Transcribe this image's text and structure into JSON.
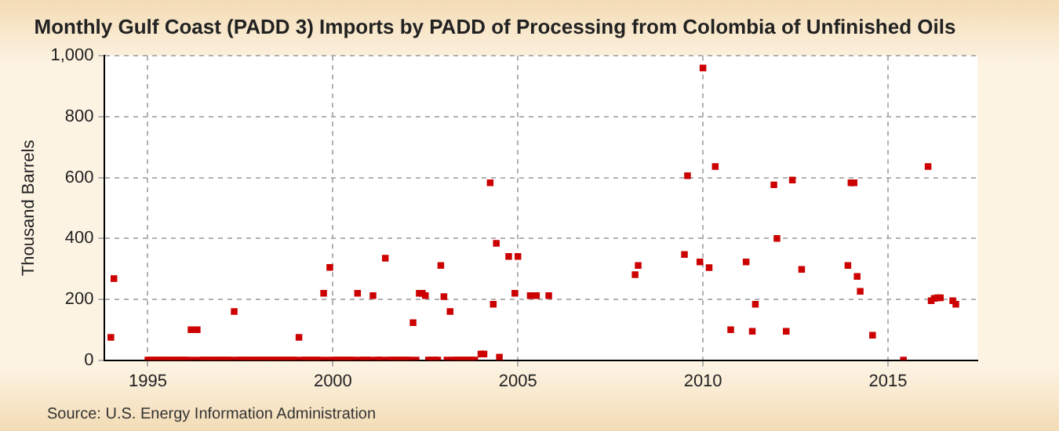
{
  "chart_data": {
    "type": "scatter",
    "title": "Monthly Gulf Coast (PADD 3) Imports by PADD of Processing from Colombia of Unfinished Oils",
    "ylabel": "Thousand Barrels",
    "annotations": [
      "Source: U.S. Energy Information Administration"
    ],
    "x": [
      "1994-01",
      "1994-02",
      "1995-01",
      "1995-02",
      "1995-03",
      "1995-04",
      "1995-05",
      "1995-06",
      "1995-07",
      "1995-08",
      "1995-09",
      "1995-10",
      "1995-11",
      "1995-12",
      "1996-01",
      "1996-02",
      "1996-03",
      "1996-04",
      "1996-05",
      "1996-06",
      "1996-07",
      "1996-08",
      "1996-09",
      "1996-10",
      "1996-11",
      "1996-12",
      "1997-01",
      "1997-02",
      "1997-03",
      "1997-04",
      "1997-05",
      "1997-06",
      "1997-07",
      "1997-08",
      "1997-09",
      "1997-10",
      "1997-11",
      "1997-12",
      "1998-01",
      "1998-02",
      "1998-03",
      "1998-04",
      "1998-05",
      "1998-06",
      "1998-07",
      "1998-08",
      "1998-09",
      "1998-10",
      "1998-11",
      "1998-12",
      "1999-01",
      "1999-02",
      "1999-03",
      "1999-04",
      "1999-05",
      "1999-06",
      "1999-07",
      "1999-08",
      "1999-09",
      "1999-10",
      "1999-11",
      "1999-12",
      "2000-01",
      "2000-02",
      "2000-03",
      "2000-04",
      "2000-05",
      "2000-06",
      "2000-07",
      "2000-08",
      "2000-09",
      "2000-10",
      "2000-11",
      "2000-12",
      "2001-01",
      "2001-02",
      "2001-03",
      "2001-04",
      "2001-05",
      "2001-06",
      "2001-07",
      "2001-08",
      "2001-09",
      "2001-10",
      "2001-11",
      "2001-12",
      "2002-01",
      "2002-02",
      "2002-03",
      "2002-04",
      "2002-05",
      "2002-06",
      "2002-07",
      "2002-08",
      "2002-09",
      "2002-10",
      "2002-11",
      "2002-12",
      "2003-01",
      "2003-02",
      "2003-03",
      "2003-04",
      "2003-05",
      "2003-06",
      "2003-07",
      "2003-08",
      "2003-09",
      "2003-10",
      "2003-11",
      "2004-01",
      "2004-02",
      "2004-04",
      "2004-05",
      "2004-06",
      "2004-07",
      "2004-10",
      "2004-12",
      "2005-01",
      "2005-05",
      "2005-07",
      "2005-11",
      "2008-03",
      "2008-04",
      "2009-07",
      "2009-08",
      "2009-12",
      "2010-01",
      "2010-03",
      "2010-05",
      "2010-10",
      "2011-03",
      "2011-05",
      "2011-06",
      "2011-12",
      "2012-01",
      "2012-04",
      "2012-06",
      "2012-09",
      "2013-12",
      "2014-01",
      "2014-02",
      "2014-03",
      "2014-04",
      "2014-08",
      "2015-06",
      "2016-02",
      "2016-03",
      "2016-04",
      "2016-05",
      "2016-06",
      "2016-10",
      "2016-11"
    ],
    "values": [
      75,
      268,
      0,
      0,
      0,
      0,
      0,
      0,
      0,
      0,
      0,
      0,
      0,
      0,
      0,
      0,
      100,
      0,
      100,
      0,
      0,
      0,
      0,
      0,
      0,
      0,
      0,
      0,
      0,
      0,
      160,
      0,
      0,
      0,
      0,
      0,
      0,
      0,
      0,
      0,
      0,
      0,
      0,
      0,
      0,
      0,
      0,
      0,
      0,
      0,
      0,
      75,
      0,
      0,
      0,
      0,
      0,
      0,
      0,
      220,
      0,
      305,
      0,
      0,
      0,
      0,
      0,
      0,
      0,
      0,
      220,
      0,
      0,
      0,
      0,
      212,
      0,
      0,
      0,
      335,
      0,
      0,
      0,
      0,
      0,
      0,
      0,
      0,
      123,
      0,
      220,
      220,
      212,
      0,
      0,
      0,
      0,
      311,
      209,
      0,
      160,
      0,
      0,
      0,
      0,
      0,
      0,
      0,
      0,
      20,
      20,
      583,
      184,
      384,
      10,
      341,
      220,
      341,
      212,
      212,
      212,
      281,
      311,
      347,
      606,
      323,
      960,
      304,
      636,
      100,
      323,
      95,
      184,
      576,
      400,
      95,
      592,
      298,
      311,
      583,
      583,
      275,
      226,
      82,
      0,
      636,
      195,
      203,
      205,
      205,
      195,
      184
    ],
    "color": "#cc0000",
    "marker": "square",
    "grid": true,
    "xlim": [
      "1993-11",
      "2017-06"
    ],
    "xticks": [
      "1995",
      "2000",
      "2005",
      "2010",
      "2015"
    ],
    "ylim": [
      0,
      1000
    ],
    "yticks": [
      0,
      200,
      400,
      600,
      800,
      {
        "value": 1000,
        "label": "1,000"
      }
    ]
  }
}
